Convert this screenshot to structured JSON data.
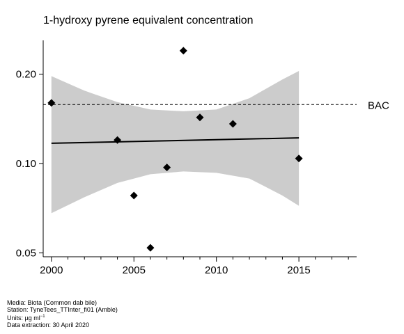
{
  "chart_data": {
    "type": "scatter",
    "title": "1-hydroxy pyrene equivalent concentration",
    "xlabel": "",
    "ylabel": "",
    "y_scale": "log",
    "xlim": [
      1999.5,
      2018.5
    ],
    "ylim": [
      0.0485,
      0.26
    ],
    "x_ticks": [
      2000,
      2005,
      2010,
      2015
    ],
    "x_tick_labels": [
      "2000",
      "2005",
      "2010",
      "2015"
    ],
    "y_ticks": [
      0.05,
      0.1,
      0.2
    ],
    "y_tick_labels": [
      "0.05",
      "0.10",
      "0.20"
    ],
    "points": [
      {
        "x": 2000,
        "y": 0.16
      },
      {
        "x": 2004,
        "y": 0.12
      },
      {
        "x": 2005,
        "y": 0.078
      },
      {
        "x": 2006,
        "y": 0.052
      },
      {
        "x": 2007,
        "y": 0.097
      },
      {
        "x": 2008,
        "y": 0.24
      },
      {
        "x": 2009,
        "y": 0.143
      },
      {
        "x": 2011,
        "y": 0.136
      },
      {
        "x": 2015,
        "y": 0.104
      }
    ],
    "trend": {
      "x": [
        2000,
        2015
      ],
      "y": [
        0.117,
        0.122
      ]
    },
    "confidence_band": {
      "x": [
        2000,
        2002,
        2004,
        2006,
        2008,
        2010,
        2012,
        2014,
        2015
      ],
      "upper": [
        0.197,
        0.176,
        0.161,
        0.152,
        0.15,
        0.152,
        0.166,
        0.192,
        0.205
      ],
      "lower": [
        0.068,
        0.077,
        0.086,
        0.092,
        0.094,
        0.093,
        0.089,
        0.078,
        0.072
      ]
    },
    "reference_line": {
      "label": "BAC",
      "y": 0.158
    },
    "grid": false,
    "colors": {
      "points": "#000000",
      "band": "#cccccc",
      "trend": "#000000"
    }
  },
  "footer": {
    "media": "Media: Biota (Common dab bile)",
    "station": "Station: TyneTees_TTInter_fi01 (Amble)",
    "units_prefix": "Units:  µg ml",
    "units_sup": "−1",
    "extraction": "Data extraction: 30 April 2020"
  }
}
